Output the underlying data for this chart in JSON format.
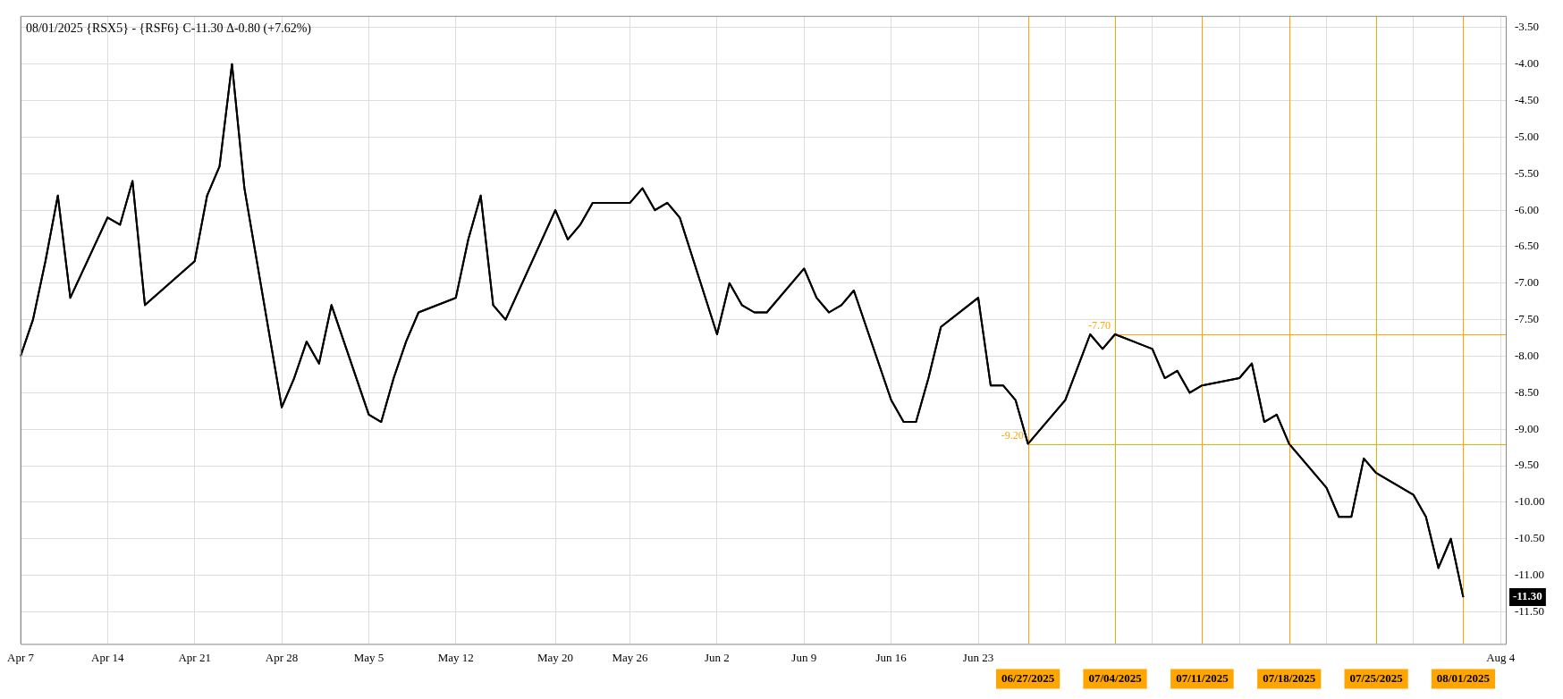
{
  "chart_data": {
    "type": "line",
    "title": "08/01/2025 {RSX5} - {RSF6} C-11.30 Δ-0.80 (+7.62%)",
    "x": [
      "2025-04-07",
      "2025-04-08",
      "2025-04-09",
      "2025-04-10",
      "2025-04-11",
      "2025-04-14",
      "2025-04-15",
      "2025-04-16",
      "2025-04-17",
      "2025-04-21",
      "2025-04-22",
      "2025-04-23",
      "2025-04-24",
      "2025-04-25",
      "2025-04-28",
      "2025-04-29",
      "2025-04-30",
      "2025-05-01",
      "2025-05-02",
      "2025-05-05",
      "2025-05-06",
      "2025-05-07",
      "2025-05-08",
      "2025-05-09",
      "2025-05-12",
      "2025-05-13",
      "2025-05-14",
      "2025-05-15",
      "2025-05-16",
      "2025-05-20",
      "2025-05-21",
      "2025-05-22",
      "2025-05-23",
      "2025-05-26",
      "2025-05-27",
      "2025-05-28",
      "2025-05-29",
      "2025-05-30",
      "2025-06-02",
      "2025-06-03",
      "2025-06-04",
      "2025-06-05",
      "2025-06-06",
      "2025-06-09",
      "2025-06-10",
      "2025-06-11",
      "2025-06-12",
      "2025-06-13",
      "2025-06-16",
      "2025-06-17",
      "2025-06-18",
      "2025-06-19",
      "2025-06-20",
      "2025-06-23",
      "2025-06-24",
      "2025-06-25",
      "2025-06-26",
      "2025-06-27",
      "2025-06-30",
      "2025-07-02",
      "2025-07-03",
      "2025-07-04",
      "2025-07-07",
      "2025-07-08",
      "2025-07-09",
      "2025-07-10",
      "2025-07-11",
      "2025-07-14",
      "2025-07-15",
      "2025-07-16",
      "2025-07-17",
      "2025-07-18",
      "2025-07-21",
      "2025-07-22",
      "2025-07-23",
      "2025-07-24",
      "2025-07-25",
      "2025-07-28",
      "2025-07-29",
      "2025-07-30",
      "2025-07-31",
      "2025-08-01"
    ],
    "series": [
      {
        "color": "#000000",
        "values": [
          -8.0,
          -7.5,
          -6.7,
          -5.8,
          -7.2,
          -6.1,
          -6.2,
          -5.6,
          -7.3,
          -6.7,
          -5.8,
          -5.4,
          -4.0,
          -5.7,
          -8.7,
          -8.3,
          -7.8,
          -8.1,
          -7.3,
          -8.8,
          -8.9,
          -8.3,
          -7.8,
          -7.4,
          -7.2,
          -6.4,
          -5.8,
          -7.3,
          -7.5,
          -6.0,
          -6.4,
          -6.2,
          -5.9,
          -5.9,
          -5.7,
          -6.0,
          -5.9,
          -6.1,
          -7.7,
          -7.0,
          -7.3,
          -7.4,
          -7.4,
          -6.8,
          -7.2,
          -7.4,
          -7.3,
          -7.1,
          -8.6,
          -8.9,
          -8.9,
          -8.3,
          -7.6,
          -7.2,
          -8.4,
          -8.4,
          -8.6,
          -9.2,
          -8.6,
          -7.7,
          -7.9,
          -7.7,
          -7.9,
          -8.3,
          -8.2,
          -8.5,
          -8.4,
          -8.3,
          -8.1,
          -8.9,
          -8.8,
          -9.2,
          -9.8,
          -10.2,
          -10.2,
          -9.4,
          -9.6,
          -9.9,
          -10.2,
          -10.9,
          -10.5,
          -11.3
        ]
      }
    ],
    "xlim": [
      "2025-04-07",
      "2025-08-04T10:00"
    ],
    "xticks": [
      {
        "value": "2025-04-07",
        "label": "Apr 7"
      },
      {
        "value": "2025-04-14",
        "label": "Apr 14"
      },
      {
        "value": "2025-04-21",
        "label": "Apr 21"
      },
      {
        "value": "2025-04-28",
        "label": "Apr 28"
      },
      {
        "value": "2025-05-05",
        "label": "May 5"
      },
      {
        "value": "2025-05-12",
        "label": "May 12"
      },
      {
        "value": "2025-05-20",
        "label": "May 20"
      },
      {
        "value": "2025-05-26",
        "label": "May 26"
      },
      {
        "value": "2025-06-02",
        "label": "Jun 2"
      },
      {
        "value": "2025-06-09",
        "label": "Jun 9"
      },
      {
        "value": "2025-06-16",
        "label": "Jun 16"
      },
      {
        "value": "2025-06-23",
        "label": "Jun 23"
      },
      {
        "value": "2025-06-30",
        "label": null
      },
      {
        "value": "2025-07-07",
        "label": null
      },
      {
        "value": "2025-07-14",
        "label": null
      },
      {
        "value": "2025-07-21",
        "label": null
      },
      {
        "value": "2025-07-28",
        "label": null
      },
      {
        "value": "2025-08-04",
        "label": "Aug 4"
      }
    ],
    "ylim": [
      -11.94,
      -3.34
    ],
    "yticks": [
      {
        "value": -3.5,
        "label": "-3.50"
      },
      {
        "value": -4.0,
        "label": "-4.00"
      },
      {
        "value": -4.5,
        "label": "-4.50"
      },
      {
        "value": -5.0,
        "label": "-5.00"
      },
      {
        "value": -5.5,
        "label": "-5.50"
      },
      {
        "value": -6.0,
        "label": "-6.00"
      },
      {
        "value": -6.5,
        "label": "-6.50"
      },
      {
        "value": -7.0,
        "label": "-7.00"
      },
      {
        "value": -7.5,
        "label": "-7.50"
      },
      {
        "value": -8.0,
        "label": "-8.00"
      },
      {
        "value": -8.5,
        "label": "-8.50"
      },
      {
        "value": -9.0,
        "label": "-9.00"
      },
      {
        "value": -9.5,
        "label": "-9.50"
      },
      {
        "value": -10.0,
        "label": "-10.00"
      },
      {
        "value": -10.5,
        "label": "-10.50"
      },
      {
        "value": -11.0,
        "label": "-11.00"
      },
      {
        "value": -11.5,
        "label": "-11.50"
      }
    ],
    "grid": true,
    "ref_lines": [
      {
        "axis": "x",
        "value": "2025-06-27",
        "label": "06/27/2025",
        "color": "#ffa500"
      },
      {
        "axis": "x",
        "value": "2025-07-04",
        "label": "07/04/2025",
        "color": "#ffa500"
      },
      {
        "axis": "x",
        "value": "2025-07-11",
        "label": "07/11/2025",
        "color": "#ffa500"
      },
      {
        "axis": "x",
        "value": "2025-07-18",
        "label": "07/18/2025",
        "color": "#ffa500"
      },
      {
        "axis": "x",
        "value": "2025-07-25",
        "label": "07/25/2025",
        "color": "#ffa500"
      },
      {
        "axis": "x",
        "value": "2025-08-01",
        "label": "08/01/2025",
        "color": "#ffa500"
      },
      {
        "axis": "y",
        "value": -7.7,
        "color": "#ffa500"
      },
      {
        "axis": "y",
        "value": -9.2,
        "color": "#ffa500"
      }
    ],
    "annotations": [
      {
        "text": "-7.70",
        "x": "2025-07-04",
        "y": -7.7
      },
      {
        "text": "-9.20",
        "x": "2025-06-27",
        "y": -9.2
      },
      "-11.30"
    ]
  }
}
